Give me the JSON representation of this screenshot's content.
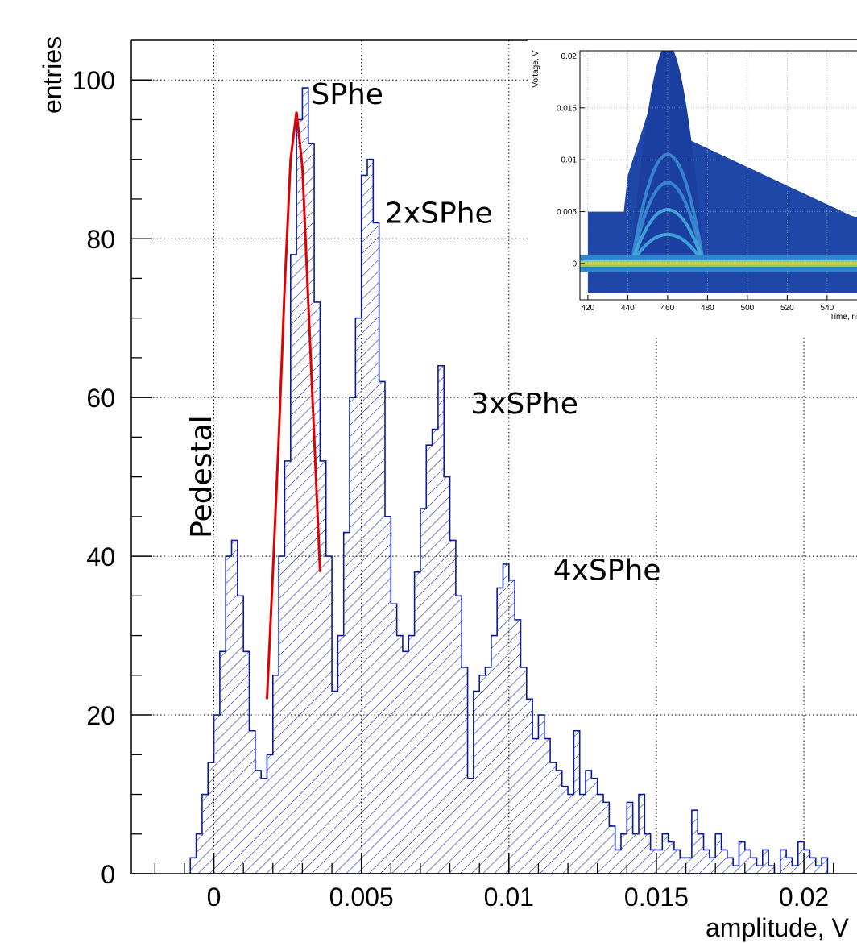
{
  "chart_data": {
    "type": "histogram",
    "xlabel": "amplitude, V",
    "ylabel": "entries",
    "xlim": [
      -0.0028,
      0.0218
    ],
    "ylim": [
      0,
      105
    ],
    "grid": true,
    "x_ticks": [
      0,
      0.005,
      0.01,
      0.015,
      0.02
    ],
    "x_tick_labels": [
      "0",
      "0.005",
      "0.01",
      "0.015",
      "0.02"
    ],
    "y_ticks": [
      0,
      20,
      40,
      60,
      80,
      100
    ],
    "y_tick_labels": [
      "0",
      "20",
      "40",
      "60",
      "80",
      "100"
    ],
    "series": [
      {
        "style": "hatched step histogram",
        "color": "#0a1aa0",
        "bins": [
          [
            -0.0008,
            2
          ],
          [
            -0.0006,
            5
          ],
          [
            -0.0004,
            10
          ],
          [
            -0.0002,
            14
          ],
          [
            0.0,
            20
          ],
          [
            0.0002,
            28
          ],
          [
            0.0004,
            40
          ],
          [
            0.0006,
            42
          ],
          [
            0.0008,
            35
          ],
          [
            0.001,
            28
          ],
          [
            0.0012,
            18
          ],
          [
            0.0014,
            13
          ],
          [
            0.0016,
            12
          ],
          [
            0.0018,
            15
          ],
          [
            0.002,
            25
          ],
          [
            0.0022,
            40
          ],
          [
            0.0024,
            52
          ],
          [
            0.0026,
            78
          ],
          [
            0.0028,
            95
          ],
          [
            0.003,
            99
          ],
          [
            0.0032,
            92
          ],
          [
            0.0034,
            72
          ],
          [
            0.0036,
            52
          ],
          [
            0.0038,
            40
          ],
          [
            0.004,
            23
          ],
          [
            0.0042,
            30
          ],
          [
            0.0044,
            43
          ],
          [
            0.0046,
            60
          ],
          [
            0.0048,
            70
          ],
          [
            0.005,
            88
          ],
          [
            0.0052,
            90
          ],
          [
            0.0054,
            82
          ],
          [
            0.0056,
            62
          ],
          [
            0.0058,
            45
          ],
          [
            0.006,
            34
          ],
          [
            0.0062,
            30
          ],
          [
            0.0064,
            28
          ],
          [
            0.0066,
            30
          ],
          [
            0.0068,
            38
          ],
          [
            0.007,
            46
          ],
          [
            0.0072,
            54
          ],
          [
            0.0074,
            56
          ],
          [
            0.0076,
            64
          ],
          [
            0.0078,
            50
          ],
          [
            0.008,
            42
          ],
          [
            0.0082,
            35
          ],
          [
            0.0084,
            26
          ],
          [
            0.0086,
            12
          ],
          [
            0.0088,
            23
          ],
          [
            0.009,
            25
          ],
          [
            0.0092,
            26
          ],
          [
            0.0094,
            30
          ],
          [
            0.0096,
            36
          ],
          [
            0.0098,
            39
          ],
          [
            0.01,
            37
          ],
          [
            0.0102,
            32
          ],
          [
            0.0104,
            26
          ],
          [
            0.0106,
            22
          ],
          [
            0.0108,
            17
          ],
          [
            0.011,
            20
          ],
          [
            0.0112,
            17
          ],
          [
            0.0114,
            14
          ],
          [
            0.0116,
            13
          ],
          [
            0.0118,
            11
          ],
          [
            0.012,
            10
          ],
          [
            0.0122,
            18
          ],
          [
            0.0124,
            10
          ],
          [
            0.0126,
            13
          ],
          [
            0.0128,
            12
          ],
          [
            0.013,
            10
          ],
          [
            0.0132,
            9
          ],
          [
            0.0134,
            6
          ],
          [
            0.0136,
            3
          ],
          [
            0.0138,
            5
          ],
          [
            0.014,
            9
          ],
          [
            0.0142,
            5
          ],
          [
            0.0144,
            10
          ],
          [
            0.0146,
            5
          ],
          [
            0.0148,
            3
          ],
          [
            0.015,
            3
          ],
          [
            0.0152,
            5
          ],
          [
            0.0154,
            4
          ],
          [
            0.0156,
            3
          ],
          [
            0.0158,
            2
          ],
          [
            0.016,
            2
          ],
          [
            0.0162,
            8
          ],
          [
            0.0164,
            5
          ],
          [
            0.0166,
            3
          ],
          [
            0.0168,
            2
          ],
          [
            0.017,
            5
          ],
          [
            0.0172,
            3
          ],
          [
            0.0174,
            2
          ],
          [
            0.0176,
            1
          ],
          [
            0.0178,
            4
          ],
          [
            0.018,
            3
          ],
          [
            0.0182,
            2
          ],
          [
            0.0184,
            1
          ],
          [
            0.0186,
            3
          ],
          [
            0.0188,
            1
          ],
          [
            0.019,
            0
          ],
          [
            0.0192,
            3
          ],
          [
            0.0194,
            2
          ],
          [
            0.0196,
            1
          ],
          [
            0.0198,
            4
          ],
          [
            0.02,
            3
          ],
          [
            0.0202,
            2
          ],
          [
            0.0204,
            1
          ],
          [
            0.0206,
            2
          ]
        ]
      },
      {
        "style": "fit curve",
        "color": "#e00000",
        "x": [
          0.0018,
          0.002,
          0.0022,
          0.0024,
          0.0026,
          0.0028,
          0.003,
          0.0032,
          0.0034,
          0.0036
        ],
        "y": [
          22,
          38,
          55,
          74,
          90,
          96,
          89,
          72,
          55,
          38
        ]
      }
    ],
    "annotations": [
      {
        "text": "SPhe",
        "x": 0.0033,
        "y": 97
      },
      {
        "text": "2xSPhe",
        "x": 0.0058,
        "y": 82
      },
      {
        "text": "3xSPhe",
        "x": 0.0087,
        "y": 58
      },
      {
        "text": "4xSPhe",
        "x": 0.0115,
        "y": 37
      },
      {
        "text": "Pedestal",
        "x": -0.0005,
        "y": 50,
        "rotated": true
      }
    ],
    "inset": {
      "type": "heatmap",
      "xlabel": "Time, ns",
      "ylabel": "Voltage, V",
      "xlim": [
        416,
        555
      ],
      "ylim": [
        -0.0035,
        0.0205
      ],
      "x_ticks": [
        420,
        440,
        460,
        480,
        500,
        520,
        540
      ],
      "x_tick_labels": [
        "420",
        "440",
        "460",
        "480",
        "500",
        "520",
        "540"
      ],
      "y_ticks": [
        0,
        0.005,
        0.01,
        0.015,
        0.02
      ],
      "y_tick_labels": [
        "0",
        "0.005",
        "0.01",
        "0.015",
        "0.02"
      ]
    }
  }
}
